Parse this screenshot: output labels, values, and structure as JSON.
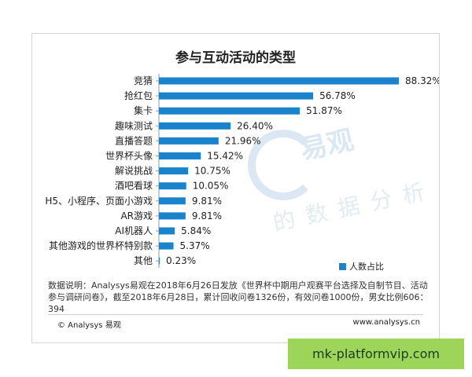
{
  "chart_data": {
    "type": "bar",
    "orientation": "horizontal",
    "title": "参与互动活动的类型",
    "categories": [
      "竞猜",
      "抢红包",
      "集卡",
      "趣味测试",
      "直播答题",
      "世界杯头像",
      "解说挑战",
      "酒吧看球",
      "H5、小程序、页面小游戏",
      "AR游戏",
      "AI机器人",
      "其他游戏的世界杯特别款",
      "其他"
    ],
    "series": [
      {
        "name": "人数占比",
        "values": [
          88.32,
          56.78,
          51.87,
          26.4,
          21.96,
          15.42,
          10.75,
          10.05,
          9.81,
          9.81,
          5.84,
          5.37,
          0.23
        ],
        "labels": [
          "88.32%",
          "56.78%",
          "51.87%",
          "26.40%",
          "21.96%",
          "15.42%",
          "10.75%",
          "10.05%",
          "9.81%",
          "9.81%",
          "5.84%",
          "5.37%",
          "0.23%"
        ]
      }
    ],
    "xlim": [
      0,
      88.32
    ],
    "grid": false,
    "legend_position": "bottom-right",
    "bar_color": "#1a83cc"
  },
  "note": "数据说明：Analysys易观在2018年6月26日发放《世界杯中期用户观赛平台选择及自制节目、活动参与调研问卷》，截至2018年6月28日，累计回收问卷1326份，有效问卷1000份，男女比例606：394",
  "footer": {
    "left": "© Analysys 易观",
    "right": "www.analysys.cn"
  },
  "watermark": {
    "big": "易观",
    "sub": "的数据分析"
  },
  "badge": {
    "text": "mk-platformvip.com"
  }
}
